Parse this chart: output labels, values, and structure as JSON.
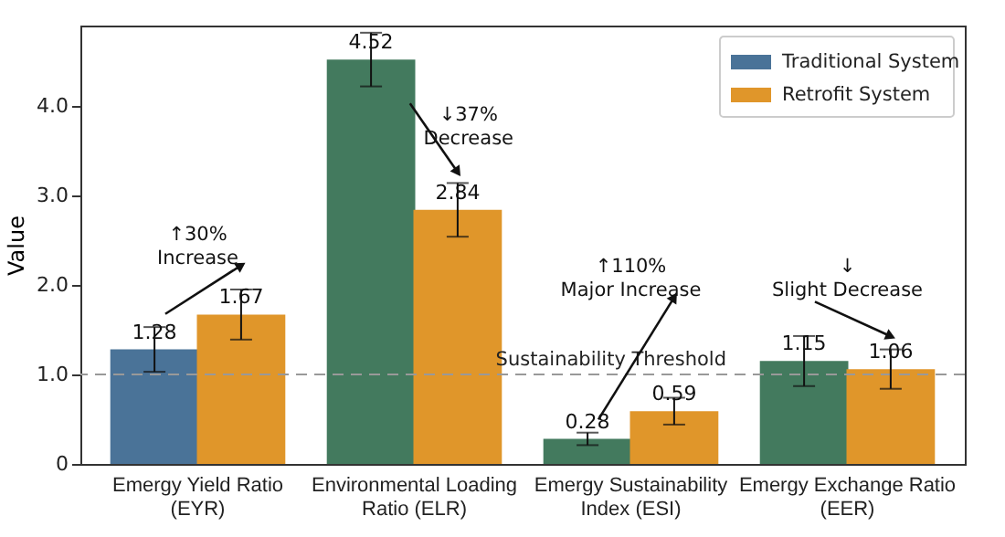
{
  "chart_data": {
    "type": "bar",
    "ylabel": "Value",
    "categories": [
      "Emergy Yield Ratio\n(EYR)",
      "Environmental Loading\nRatio (ELR)",
      "Emergy Sustainability\nIndex (ESI)",
      "Emergy Exchange Ratio\n(EER)"
    ],
    "series": [
      {
        "name": "Traditional System",
        "color": "#4a7398",
        "colors": [
          "#4a7398",
          "#437a5e",
          "#437a5e",
          "#437a5e"
        ],
        "values": [
          1.28,
          4.52,
          0.28,
          1.15
        ],
        "errors": [
          0.25,
          0.3,
          0.07,
          0.28
        ]
      },
      {
        "name": "Retrofit System",
        "color": "#e0962a",
        "values": [
          1.67,
          2.84,
          0.59,
          1.06
        ],
        "errors": [
          0.28,
          0.3,
          0.15,
          0.22
        ]
      }
    ],
    "ylim": [
      0,
      4.9
    ],
    "yticks": [
      {
        "value": 0,
        "label": "0"
      },
      {
        "value": 1,
        "label": "1.0"
      },
      {
        "value": 2,
        "label": "2.0"
      },
      {
        "value": 3,
        "label": "3.0"
      },
      {
        "value": 4,
        "label": "4.0"
      }
    ],
    "data_labels": true,
    "legend": "top right",
    "grid": false,
    "ref_lines": [
      {
        "axis": "y",
        "value": 1,
        "label": "Sustainability Threshold",
        "color": "#999999",
        "line_style": "dashed"
      }
    ],
    "annotations": [
      "↑30%\nIncrease",
      "↓37%\nDecrease",
      "↑110%\nMajor Increase",
      "↓\nSlight Decrease"
    ]
  }
}
